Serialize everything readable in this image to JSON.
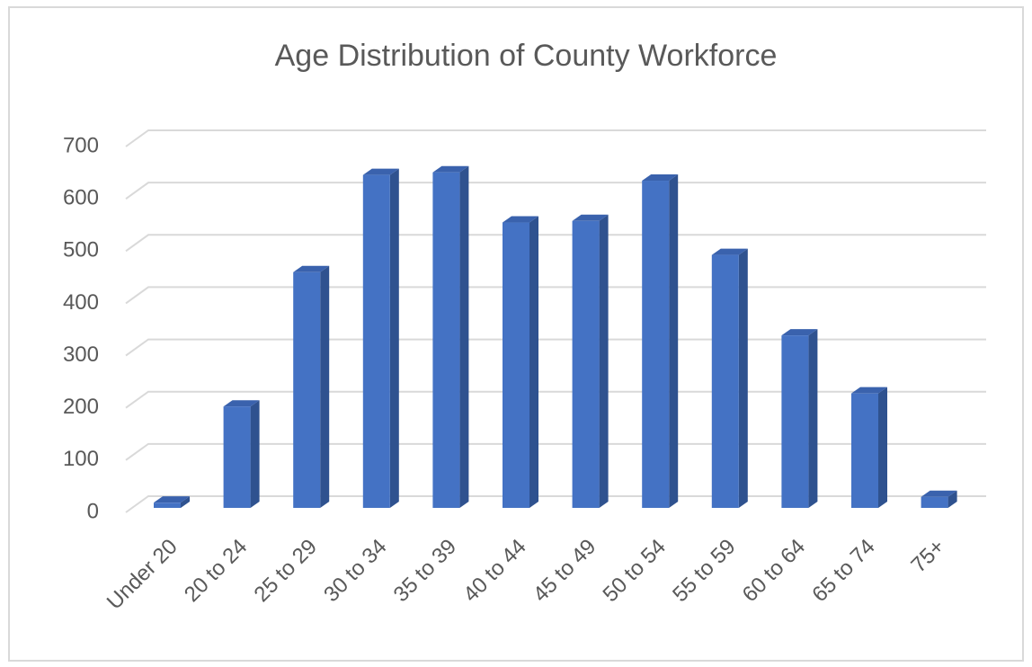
{
  "chart_data": {
    "type": "bar3d",
    "title": "Age Distribution of County Workforce",
    "categories": [
      "Under 20",
      "20 to 24",
      "25 to 29",
      "30 to 34",
      "35 to 39",
      "40 to 44",
      "45 to 49",
      "50 to 54",
      "55 to 59",
      "60 to 64",
      "65 to 74",
      "75+"
    ],
    "values": [
      10,
      194,
      451,
      637,
      642,
      546,
      549,
      626,
      484,
      330,
      219,
      21
    ],
    "color": "#4472c4",
    "ylim": [
      0,
      700
    ],
    "yticks": [
      0,
      100,
      200,
      300,
      400,
      500,
      600,
      700
    ],
    "grid": true
  }
}
